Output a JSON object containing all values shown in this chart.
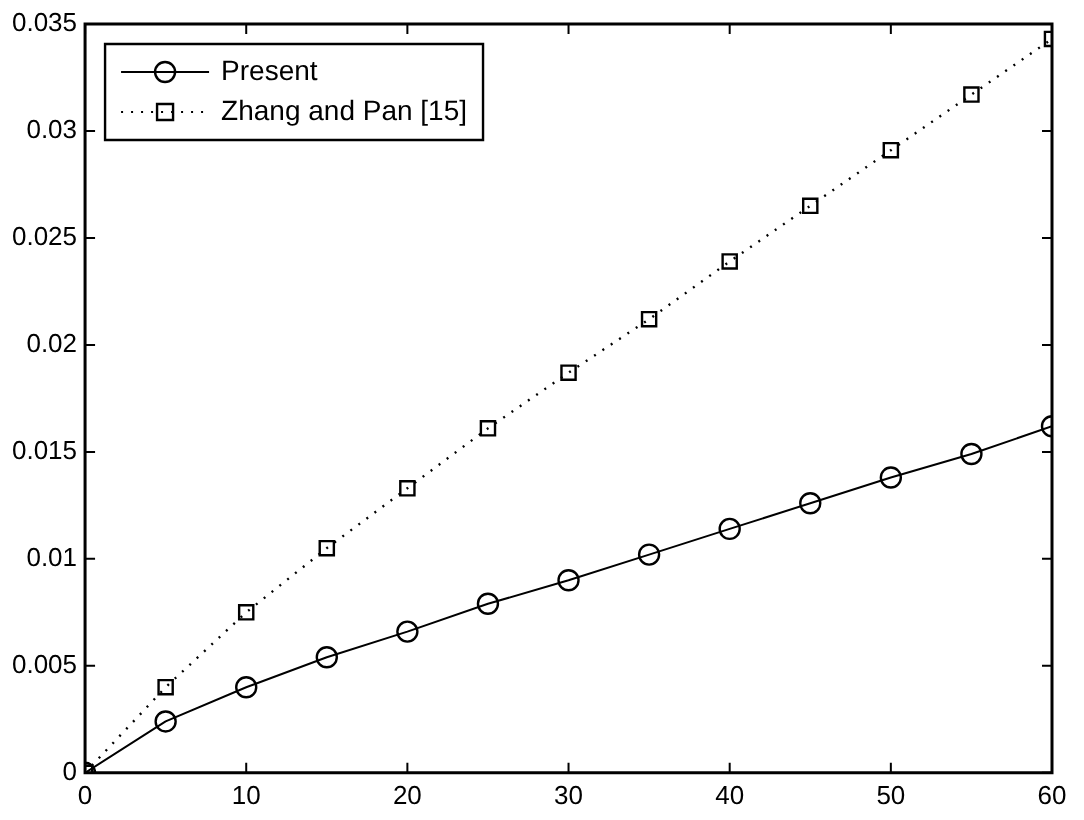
{
  "chart_data": {
    "type": "line",
    "x": [
      0,
      5,
      10,
      15,
      20,
      25,
      30,
      35,
      40,
      45,
      50,
      55,
      60
    ],
    "series": [
      {
        "name": "Present",
        "color": "#000000",
        "marker": "circle",
        "line_style": "solid",
        "values": [
          0,
          0.0024,
          0.004,
          0.0054,
          0.0066,
          0.0079,
          0.009,
          0.0102,
          0.0114,
          0.0126,
          0.0138,
          0.0149,
          0.0162
        ]
      },
      {
        "name": "Zhang and Pan [15]",
        "color": "#000000",
        "marker": "square",
        "line_style": "dotted",
        "values": [
          0,
          0.004,
          0.0075,
          0.0105,
          0.0133,
          0.0161,
          0.0187,
          0.0212,
          0.0239,
          0.0265,
          0.0291,
          0.0317,
          0.0343
        ]
      }
    ],
    "xlim": [
      0,
      60
    ],
    "xticks": [
      0,
      10,
      20,
      30,
      40,
      50,
      60
    ],
    "ylim": [
      0,
      0.035
    ],
    "yticks": [
      0,
      0.005,
      0.01,
      0.015,
      0.02,
      0.025,
      0.03,
      0.035
    ],
    "grid": false,
    "legend": "top left"
  }
}
